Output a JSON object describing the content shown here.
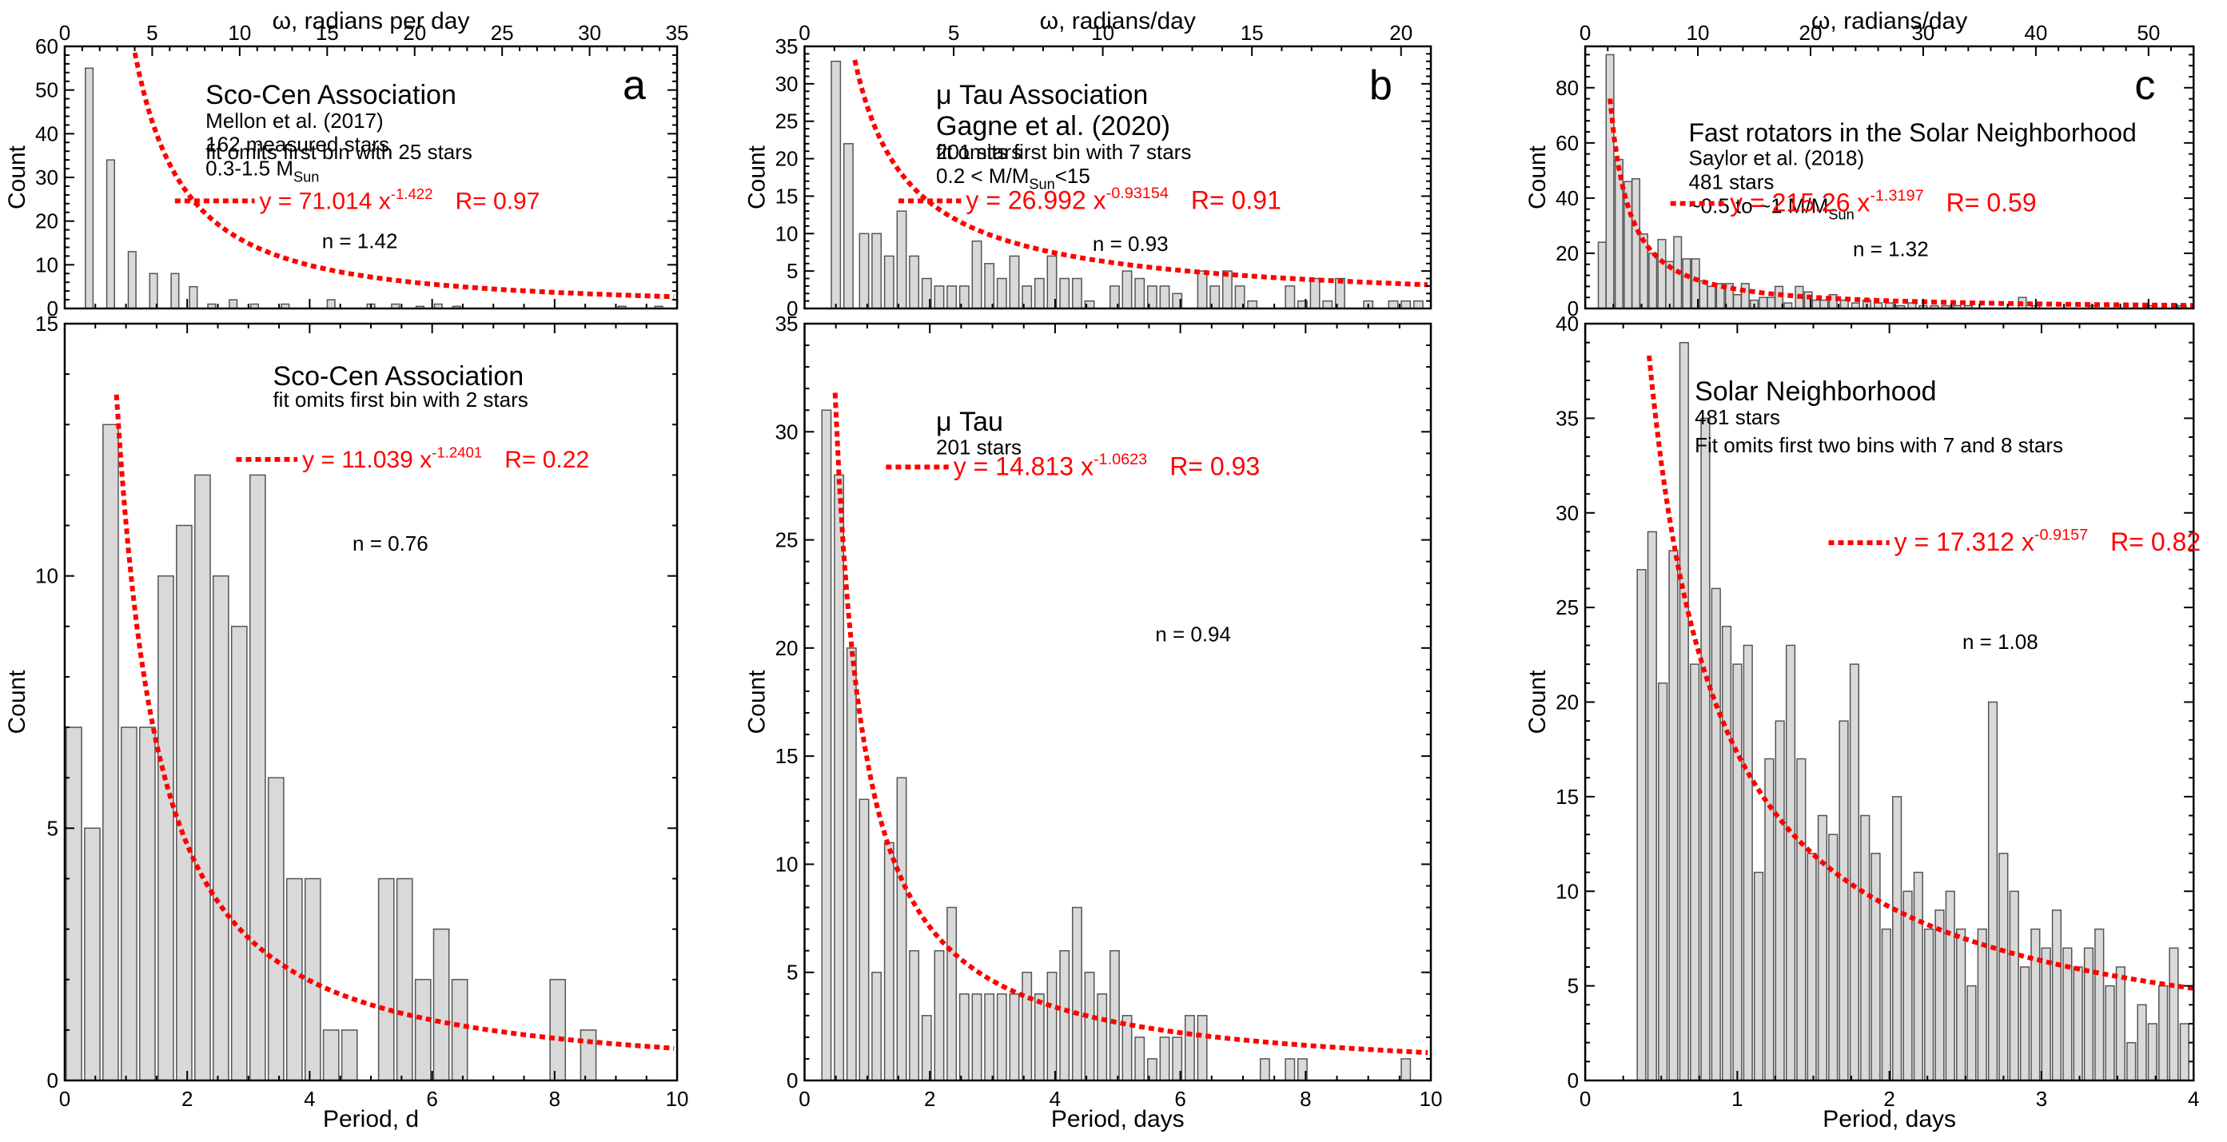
{
  "chart_data": [
    {
      "id": "a-top",
      "type": "bar",
      "column": "a",
      "letter": "a",
      "top_axis_title": "ω, radians per day",
      "xlim": [
        0,
        10
      ],
      "xticks": [
        0,
        2,
        4,
        6,
        8,
        10
      ],
      "top_xlim": [
        0,
        35
      ],
      "top_xticks": [
        0,
        5,
        10,
        15,
        20,
        25,
        30,
        35
      ],
      "ylim": [
        0,
        60
      ],
      "yticks": [
        0,
        10,
        20,
        30,
        40,
        50,
        60
      ],
      "ylabel": "Count",
      "bar_width": 0.125,
      "x": [
        0.4,
        0.75,
        1.1,
        1.45,
        1.8,
        2.1,
        2.4,
        2.75,
        3.1,
        3.6,
        4.35,
        5.0,
        5.4,
        5.8,
        6.1,
        6.4,
        9.1,
        9.7
      ],
      "values": [
        55,
        34,
        13,
        8,
        8,
        5,
        1,
        2,
        1,
        1,
        2,
        1,
        1,
        0.5,
        1,
        0.5,
        0.5,
        0.5
      ],
      "fit": {
        "a": 71.014,
        "b": -1.422,
        "xfrom": 0.32,
        "xto": 9.95,
        "label": "y = 71.014  x",
        "exp": "-1.422",
        "r": "R= 0.97"
      },
      "lines": [
        {
          "text": "Sco-Cen Association",
          "size": "big"
        },
        {
          "text": "Mellon et al. (2017)",
          "size": "med"
        },
        {
          "text": "162 measured stars",
          "size": "med"
        },
        {
          "text": " 0.3-1.5 M",
          "sub": "Sun",
          "size": "med"
        }
      ],
      "note": "fit omits first bin with 25 stars",
      "n_label": "n = 1.42"
    },
    {
      "id": "a-bottom",
      "type": "bar",
      "column": "a",
      "letter": "",
      "xlim": [
        0,
        10
      ],
      "xticks": [
        0,
        2,
        4,
        6,
        8,
        10
      ],
      "ylim": [
        0,
        15
      ],
      "yticks": [
        0,
        5,
        10,
        15
      ],
      "xlabel": "Period, d",
      "ylabel": "Count",
      "bar_width": 0.25,
      "x": [
        0.15,
        0.45,
        0.75,
        1.05,
        1.35,
        1.65,
        1.95,
        2.25,
        2.55,
        2.85,
        3.15,
        3.45,
        3.75,
        4.05,
        4.35,
        4.65,
        5.25,
        5.55,
        5.85,
        6.15,
        6.45,
        8.05,
        8.55
      ],
      "values": [
        7,
        5,
        13,
        7,
        7,
        10,
        11,
        12,
        10,
        9,
        12,
        6,
        4,
        4,
        1,
        1,
        4,
        4,
        2,
        3,
        2,
        2,
        1
      ],
      "fit": {
        "a": 11.039,
        "b": -1.2401,
        "xfrom": 0.78,
        "xto": 9.95,
        "label": "y = 11.039 x",
        "exp": "-1.2401",
        "r": "R= 0.22"
      },
      "lines": [
        {
          "text": "Sco-Cen Association",
          "size": "big"
        }
      ],
      "note": "fit omits first bin with 2 stars",
      "n_label": "n = 0.76"
    },
    {
      "id": "b-top",
      "type": "bar",
      "column": "b",
      "letter": "b",
      "top_axis_title": "ω, radians/day",
      "xlim": [
        0,
        10
      ],
      "xticks": [
        0,
        2,
        4,
        6,
        8,
        10
      ],
      "top_xlim": [
        0,
        21
      ],
      "top_xticks": [
        0,
        5,
        10,
        15,
        20
      ],
      "ylim": [
        0,
        35
      ],
      "yticks": [
        0,
        5,
        10,
        15,
        20,
        25,
        30,
        35
      ],
      "ylabel": "Count",
      "bar_width": 0.145,
      "x": [
        0.5,
        0.7,
        0.95,
        1.15,
        1.35,
        1.55,
        1.75,
        1.95,
        2.15,
        2.35,
        2.55,
        2.75,
        2.95,
        3.15,
        3.35,
        3.55,
        3.75,
        3.95,
        4.15,
        4.35,
        4.55,
        4.75,
        4.95,
        5.15,
        5.35,
        5.55,
        5.75,
        5.95,
        6.15,
        6.35,
        6.55,
        6.75,
        6.95,
        7.15,
        7.35,
        7.55,
        7.75,
        7.95,
        8.15,
        8.35,
        8.55,
        9.0,
        9.4,
        9.6,
        9.8
      ],
      "values": [
        33,
        22,
        10,
        10,
        7,
        13,
        7,
        4,
        3,
        3,
        3,
        9,
        6,
        4,
        7,
        3,
        4,
        7,
        4,
        4,
        1,
        0,
        3,
        5,
        4,
        3,
        3,
        2,
        0,
        5,
        3,
        5,
        3,
        1,
        0,
        0,
        3,
        1,
        4,
        1,
        4,
        1,
        1,
        1,
        1
      ],
      "fit": {
        "a": 26.992,
        "b": -0.93154,
        "xfrom": 0.32,
        "xto": 9.95,
        "label": "y = 26.992 x",
        "exp": "-0.93154",
        "r": "R= 0.91"
      },
      "lines": [
        {
          "text": "μ Tau Association",
          "size": "big"
        },
        {
          "text": "Gagne et al. (2020)",
          "size": "big"
        },
        {
          "text": "201 stars",
          "size": "med"
        },
        {
          "text": "0.2 < M/M",
          "sub": "Sun",
          "after": "<15",
          "size": "med"
        }
      ],
      "note": "fit omits first bin with 7 stars",
      "n_label": "n = 0.93"
    },
    {
      "id": "b-bottom",
      "type": "bar",
      "column": "b",
      "letter": "",
      "xlim": [
        0,
        10
      ],
      "xticks": [
        0,
        2,
        4,
        6,
        8,
        10
      ],
      "ylim": [
        0,
        35
      ],
      "yticks": [
        0,
        5,
        10,
        15,
        20,
        25,
        30,
        35
      ],
      "xlabel": "Period, days",
      "ylabel": "Count",
      "bar_width": 0.145,
      "x": [
        0.35,
        0.55,
        0.75,
        0.95,
        1.15,
        1.35,
        1.55,
        1.75,
        1.95,
        2.15,
        2.35,
        2.55,
        2.75,
        2.95,
        3.15,
        3.35,
        3.55,
        3.75,
        3.95,
        4.15,
        4.35,
        4.55,
        4.75,
        4.95,
        5.15,
        5.35,
        5.55,
        5.75,
        5.95,
        6.15,
        6.35,
        7.35,
        7.75,
        7.95,
        9.6
      ],
      "values": [
        31,
        28,
        20,
        13,
        5,
        11,
        14,
        6,
        3,
        6,
        8,
        4,
        4,
        4,
        4,
        4,
        5,
        4,
        5,
        6,
        8,
        5,
        4,
        6,
        3,
        2,
        1,
        2,
        2,
        3,
        3,
        1,
        1,
        1,
        1
      ],
      "fit": {
        "a": 14.813,
        "b": -1.0623,
        "xfrom": 0.35,
        "xto": 9.95,
        "label": "y = 14.813 x",
        "exp": "-1.0623",
        "r": "R= 0.93"
      },
      "lines": [
        {
          "text": "μ Tau",
          "size": "big"
        },
        {
          "text": "201 stars",
          "size": "med"
        }
      ],
      "note": "",
      "n_label": "n = 0.94"
    },
    {
      "id": "c-top",
      "type": "bar",
      "column": "c",
      "letter": "c",
      "top_axis_title": "ω, radians/day",
      "xlim": [
        0,
        54
      ],
      "xticks": [
        0,
        10,
        20,
        30,
        40,
        50
      ],
      "top_xlim": [
        0,
        54
      ],
      "top_xticks": [
        0,
        10,
        20,
        30,
        40,
        50
      ],
      "ylim": [
        0,
        95
      ],
      "yticks": [
        0,
        20,
        40,
        60,
        80
      ],
      "ylabel": "Count",
      "bar_width": 0.68,
      "x": [
        1.5,
        2.2,
        3.0,
        3.8,
        4.5,
        5.2,
        6.0,
        6.8,
        7.5,
        8.2,
        9.0,
        9.8,
        10.5,
        11.2,
        12.0,
        12.8,
        13.5,
        14.2,
        15.0,
        15.8,
        16.5,
        17.2,
        18.0,
        19.0,
        19.8,
        20.5,
        21.2,
        22.0,
        23.0,
        24.0,
        25.0,
        26.0,
        27.0,
        28.0,
        29.0,
        30.0,
        31.0,
        32.0,
        33.0,
        34.0,
        38.8,
        40.0,
        45.0,
        50.0,
        53.0
      ],
      "values": [
        24,
        92,
        54,
        46,
        47,
        27,
        20,
        25,
        17,
        26,
        18,
        18,
        10,
        8,
        9,
        9,
        5,
        9,
        3,
        4,
        4,
        8,
        2,
        8,
        6,
        3,
        3,
        5,
        3,
        2,
        3,
        2,
        2,
        1,
        2,
        1,
        1,
        1,
        1,
        1,
        4,
        1,
        1,
        1,
        1
      ],
      "fit": {
        "a": 215.26,
        "b": -1.3197,
        "xfrom": 2.2,
        "xto": 54,
        "label": "y = 215.26 x",
        "exp": "-1.3197",
        "r": "R= 0.59"
      },
      "lines": [
        {
          "text": "Fast rotators in the Solar Neighborhood",
          "size": "big"
        },
        {
          "text": "Saylor et al. (2018)",
          "size": "med"
        },
        {
          "text": "481 stars",
          "size": "med"
        },
        {
          "text": "~0.5 to ~1 M/M",
          "sub": "Sun",
          "size": "med"
        }
      ],
      "note": "",
      "n_label": "n = 1.32"
    },
    {
      "id": "c-bottom",
      "type": "bar",
      "column": "c",
      "letter": "",
      "xlim": [
        0,
        4
      ],
      "xticks": [
        0,
        1,
        2,
        3,
        4
      ],
      "ylim": [
        0,
        40
      ],
      "yticks": [
        0,
        5,
        10,
        15,
        20,
        25,
        30,
        35,
        40
      ],
      "xlabel": "Period, days",
      "ylabel": "Count",
      "bar_width": 0.056,
      "x": [
        0.37,
        0.44,
        0.51,
        0.58,
        0.65,
        0.72,
        0.79,
        0.86,
        0.93,
        1.0,
        1.07,
        1.14,
        1.21,
        1.28,
        1.35,
        1.42,
        1.49,
        1.56,
        1.63,
        1.7,
        1.77,
        1.84,
        1.91,
        1.98,
        2.05,
        2.12,
        2.19,
        2.26,
        2.33,
        2.4,
        2.47,
        2.54,
        2.61,
        2.68,
        2.75,
        2.82,
        2.89,
        2.96,
        3.03,
        3.1,
        3.17,
        3.24,
        3.31,
        3.38,
        3.45,
        3.52,
        3.59,
        3.66,
        3.73,
        3.8,
        3.87,
        3.94
      ],
      "values": [
        27,
        29,
        21,
        28,
        39,
        22,
        35,
        26,
        24,
        22,
        23,
        11,
        17,
        19,
        23,
        17,
        12,
        14,
        13,
        19,
        22,
        14,
        12,
        8,
        15,
        10,
        11,
        8,
        9,
        10,
        8,
        5,
        8,
        20,
        12,
        10,
        6,
        8,
        7,
        9,
        7,
        6,
        7,
        8,
        5,
        6,
        2,
        4,
        3,
        5,
        7,
        3
      ],
      "fit": {
        "a": 17.312,
        "b": -0.9157,
        "xfrom": 0.42,
        "xto": 4.0,
        "label": "y = 17.312 x",
        "exp": "-0.9157",
        "r": "R= 0.82"
      },
      "lines": [
        {
          "text": "Solar Neighborhood",
          "size": "big"
        },
        {
          "text": "481 stars",
          "size": "med"
        }
      ],
      "note": "Fit omits first two bins with 7 and 8 stars",
      "n_label": "n = 1.08"
    }
  ]
}
